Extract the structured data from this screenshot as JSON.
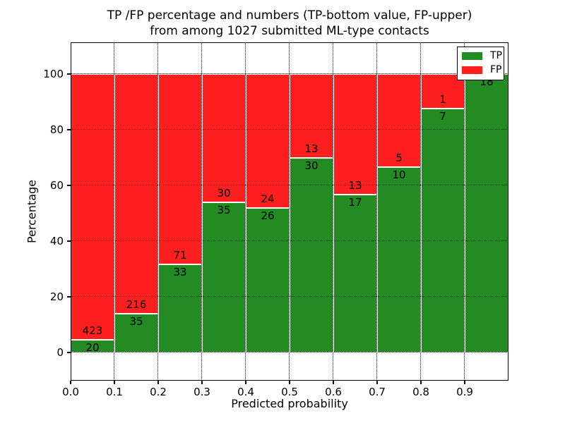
{
  "figure": {
    "background": "#ffffff"
  },
  "chart_data": {
    "type": "bar",
    "stacked": true,
    "units": "percent",
    "title_line1": "TP /FP percentage and numbers (TP-bottom value, FP-upper)",
    "title_line2": "from among 1027 submitted ML-type contacts",
    "xlabel": "Predicted probability",
    "ylabel": "Percentage",
    "categories": [
      "0.0-0.1",
      "0.1-0.2",
      "0.2-0.3",
      "0.3-0.4",
      "0.4-0.5",
      "0.5-0.6",
      "0.6-0.7",
      "0.7-0.8",
      "0.8-0.9",
      "0.9-1.0"
    ],
    "series": [
      {
        "name": "TP",
        "color": "#228b22",
        "counts": [
          20,
          35,
          33,
          35,
          26,
          30,
          17,
          10,
          7,
          18
        ]
      },
      {
        "name": "FP",
        "color": "#ff1f1f",
        "counts": [
          423,
          216,
          71,
          30,
          24,
          13,
          13,
          5,
          1,
          0
        ]
      }
    ],
    "tp_percent": [
      4.5,
      13.9,
      31.7,
      53.8,
      52.0,
      69.8,
      56.7,
      66.7,
      87.5,
      100.0
    ],
    "x_tick_labels": [
      "0.0",
      "0.1",
      "0.2",
      "0.3",
      "0.4",
      "0.5",
      "0.6",
      "0.7",
      "0.8",
      "0.9"
    ],
    "y_ticks": [
      0,
      20,
      40,
      60,
      80,
      100
    ],
    "y_tick_labels": [
      "0",
      "20",
      "40",
      "60",
      "80",
      "100"
    ],
    "xlim": [
      0.0,
      1.0
    ],
    "ylim": [
      -10,
      111
    ],
    "grid": "dotted black, both axes",
    "legend": {
      "position": "upper right",
      "entries": [
        "TP",
        "FP"
      ]
    },
    "total_contacts": 1027
  }
}
